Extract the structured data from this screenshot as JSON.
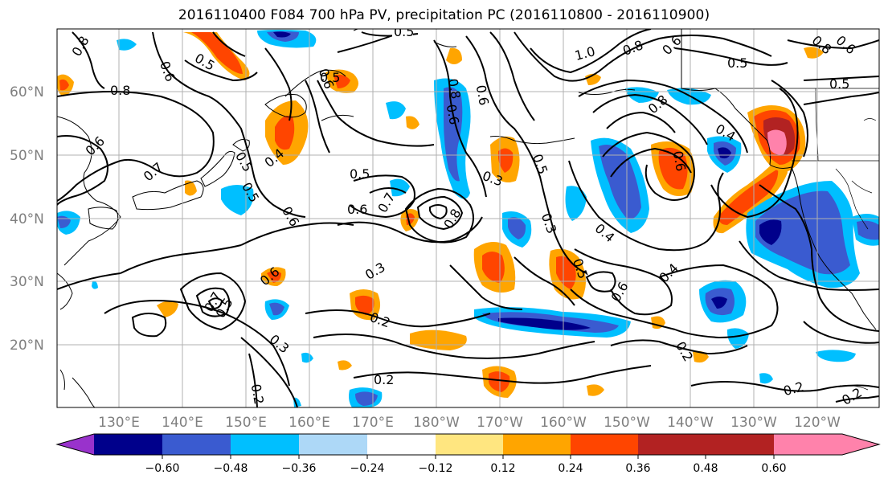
{
  "title": "2016110400 F084 700 hPa PV, precipitation PC (2016110800 - 2016110900)",
  "lon_labels": [
    "130°E",
    "140°E",
    "150°E",
    "160°E",
    "170°E",
    "180°W",
    "170°W",
    "160°W",
    "150°W",
    "140°W",
    "130°W",
    "120°W"
  ],
  "lat_labels": [
    "60°N",
    "50°N",
    "40°N",
    "30°N",
    "20°N"
  ],
  "colorbar": {
    "colors": [
      "#9932cc",
      "#00008b",
      "#3a5bd0",
      "#00bfff",
      "#add8f7",
      "#ffffff",
      "#ffe680",
      "#ffa500",
      "#ff4500",
      "#b22222",
      "#ff82ab"
    ],
    "tick_labels": [
      "−0.60",
      "−0.48",
      "−0.36",
      "−0.24",
      "−0.12",
      "0.12",
      "0.24",
      "0.36",
      "0.48",
      "0.60"
    ]
  },
  "contour_labels": [
    "0.5",
    "0.8",
    "0.6",
    "0.5",
    "0.8",
    "0.6",
    "0.8",
    "0.6",
    "0.6",
    "0.5",
    "0.5",
    "0.5",
    "1.0",
    "0.8",
    "0.6",
    "0.5",
    "0.8",
    "0.6",
    "0.5",
    "0.8",
    "0.4",
    "0.6",
    "0.7",
    "0.5",
    "0.5",
    "0.4",
    "0.3",
    "0.6",
    "0.7",
    "0.6",
    "0.8",
    "0.6",
    "0.3",
    "0.5",
    "0.4",
    "0.3",
    "0.6",
    "0.6",
    "0.4",
    "0.7",
    "0.5",
    "0.3",
    "0.2",
    "0.2",
    "0.2",
    "0.2",
    "0.2",
    "0.2"
  ]
}
